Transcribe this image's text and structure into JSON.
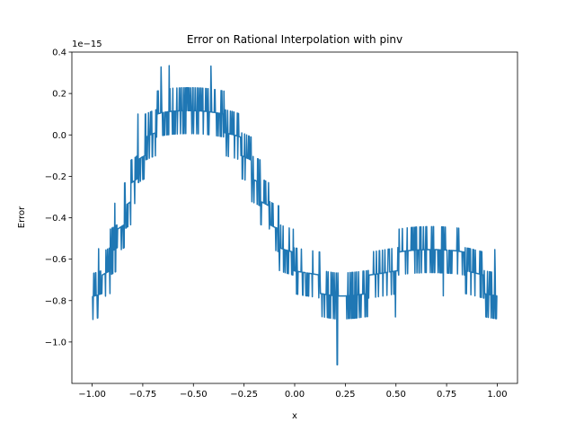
{
  "chart_data": {
    "type": "line",
    "title": "Error on Rational Interpolation with pinv",
    "xlabel": "x",
    "ylabel": "Error",
    "offset_text": "1e−15",
    "xlim": [
      -1.1,
      1.1
    ],
    "ylim": [
      -1.2,
      0.4
    ],
    "x_ticks": [
      -1.0,
      -0.75,
      -0.5,
      -0.25,
      0.0,
      0.25,
      0.5,
      0.75,
      1.0
    ],
    "x_tick_labels": [
      "−1.00",
      "−0.75",
      "−0.50",
      "−0.25",
      "0.00",
      "0.25",
      "0.50",
      "0.75",
      "1.00"
    ],
    "y_ticks": [
      -1.0,
      -0.8,
      -0.6,
      -0.4,
      -0.2,
      0.0,
      0.2,
      0.4
    ],
    "y_tick_labels": [
      "−1.0",
      "−0.8",
      "−0.6",
      "−0.4",
      "−0.2",
      "0.0",
      "0.2",
      "0.4"
    ],
    "grid": false,
    "series": [
      {
        "color": "#1f77b4",
        "x_range": [
          -1.0,
          1.0
        ],
        "points": 1000,
        "quantum": 0.111,
        "envelope_x": [
          -1.0,
          -0.95,
          -0.9,
          -0.85,
          -0.8,
          -0.75,
          -0.7,
          -0.65,
          -0.6,
          -0.55,
          -0.5,
          -0.45,
          -0.4,
          -0.35,
          -0.3,
          -0.25,
          -0.2,
          -0.15,
          -0.1,
          -0.05,
          0.0,
          0.05,
          0.1,
          0.15,
          0.2,
          0.25,
          0.3,
          0.35,
          0.4,
          0.45,
          0.5,
          0.55,
          0.6,
          0.65,
          0.7,
          0.75,
          0.8,
          0.85,
          0.9,
          0.95,
          1.0
        ],
        "envelope_y": [
          -0.8,
          -0.72,
          -0.58,
          -0.42,
          -0.25,
          -0.08,
          0.03,
          0.1,
          0.13,
          0.14,
          0.14,
          0.13,
          0.1,
          0.06,
          0.0,
          -0.08,
          -0.2,
          -0.32,
          -0.45,
          -0.55,
          -0.62,
          -0.66,
          -0.7,
          -0.74,
          -0.78,
          -0.78,
          -0.76,
          -0.73,
          -0.7,
          -0.66,
          -0.62,
          -0.58,
          -0.56,
          -0.55,
          -0.55,
          -0.56,
          -0.58,
          -0.62,
          -0.68,
          -0.74,
          -0.78
        ],
        "min_point": [
          0.21,
          -1.11
        ]
      }
    ]
  }
}
